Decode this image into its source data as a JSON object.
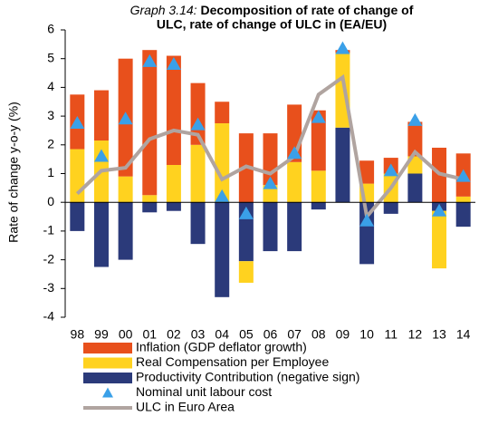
{
  "chart_data": {
    "type": "bar",
    "title_label": "Graph 3.14:",
    "title": [
      "Decomposition of rate of change of",
      "ULC, rate of change of ULC in (EA/EU)"
    ],
    "y_label": "Rate of change y-o-y (%)",
    "categories": [
      "98",
      "99",
      "00",
      "01",
      "02",
      "03",
      "04",
      "05",
      "06",
      "07",
      "08",
      "09",
      "10",
      "11",
      "12",
      "13",
      "14"
    ],
    "ylim": [
      -4,
      6
    ],
    "yticks": [
      -4,
      -3,
      -2,
      -1,
      0,
      1,
      2,
      3,
      4,
      5,
      6
    ],
    "series": [
      {
        "name": "Productivity Contribution (negative sign)",
        "type": "bar",
        "color": "#2b3a7a",
        "values": [
          -1.0,
          -2.25,
          -2.0,
          -0.35,
          -0.3,
          -1.45,
          -3.3,
          -2.05,
          -1.7,
          -1.7,
          -0.25,
          2.6,
          -2.15,
          -0.4,
          1.0,
          -0.3,
          -0.85
        ]
      },
      {
        "name": "Real Compensation per Employee",
        "type": "bar",
        "color": "#ffd21f",
        "values": [
          1.85,
          2.15,
          0.9,
          0.25,
          1.3,
          2.0,
          2.75,
          -0.75,
          0.6,
          1.4,
          1.1,
          2.6,
          0.65,
          1.0,
          0.6,
          -2.0,
          0.2
        ]
      },
      {
        "name": "Inflation (GDP deflator growth)",
        "type": "bar",
        "color": "#e8501c",
        "values": [
          1.9,
          1.75,
          4.1,
          5.05,
          3.8,
          2.15,
          0.75,
          2.4,
          1.8,
          2.0,
          2.1,
          0.1,
          0.8,
          0.55,
          1.2,
          1.9,
          1.5
        ]
      },
      {
        "name": "Nominal unit labour cost",
        "type": "scatter",
        "color": "#3aa0e8",
        "values": [
          2.75,
          1.6,
          2.9,
          4.9,
          4.8,
          2.7,
          0.2,
          -0.4,
          0.65,
          1.7,
          2.95,
          5.35,
          -0.65,
          1.1,
          2.85,
          -0.3,
          0.9
        ]
      },
      {
        "name": "ULC in Euro Area",
        "type": "line",
        "color": "#b0a4a0",
        "values": [
          0.3,
          1.1,
          1.2,
          2.2,
          2.5,
          2.35,
          0.8,
          1.25,
          1.0,
          1.6,
          3.75,
          4.35,
          -0.5,
          0.5,
          1.75,
          1.0,
          0.8
        ]
      }
    ]
  }
}
